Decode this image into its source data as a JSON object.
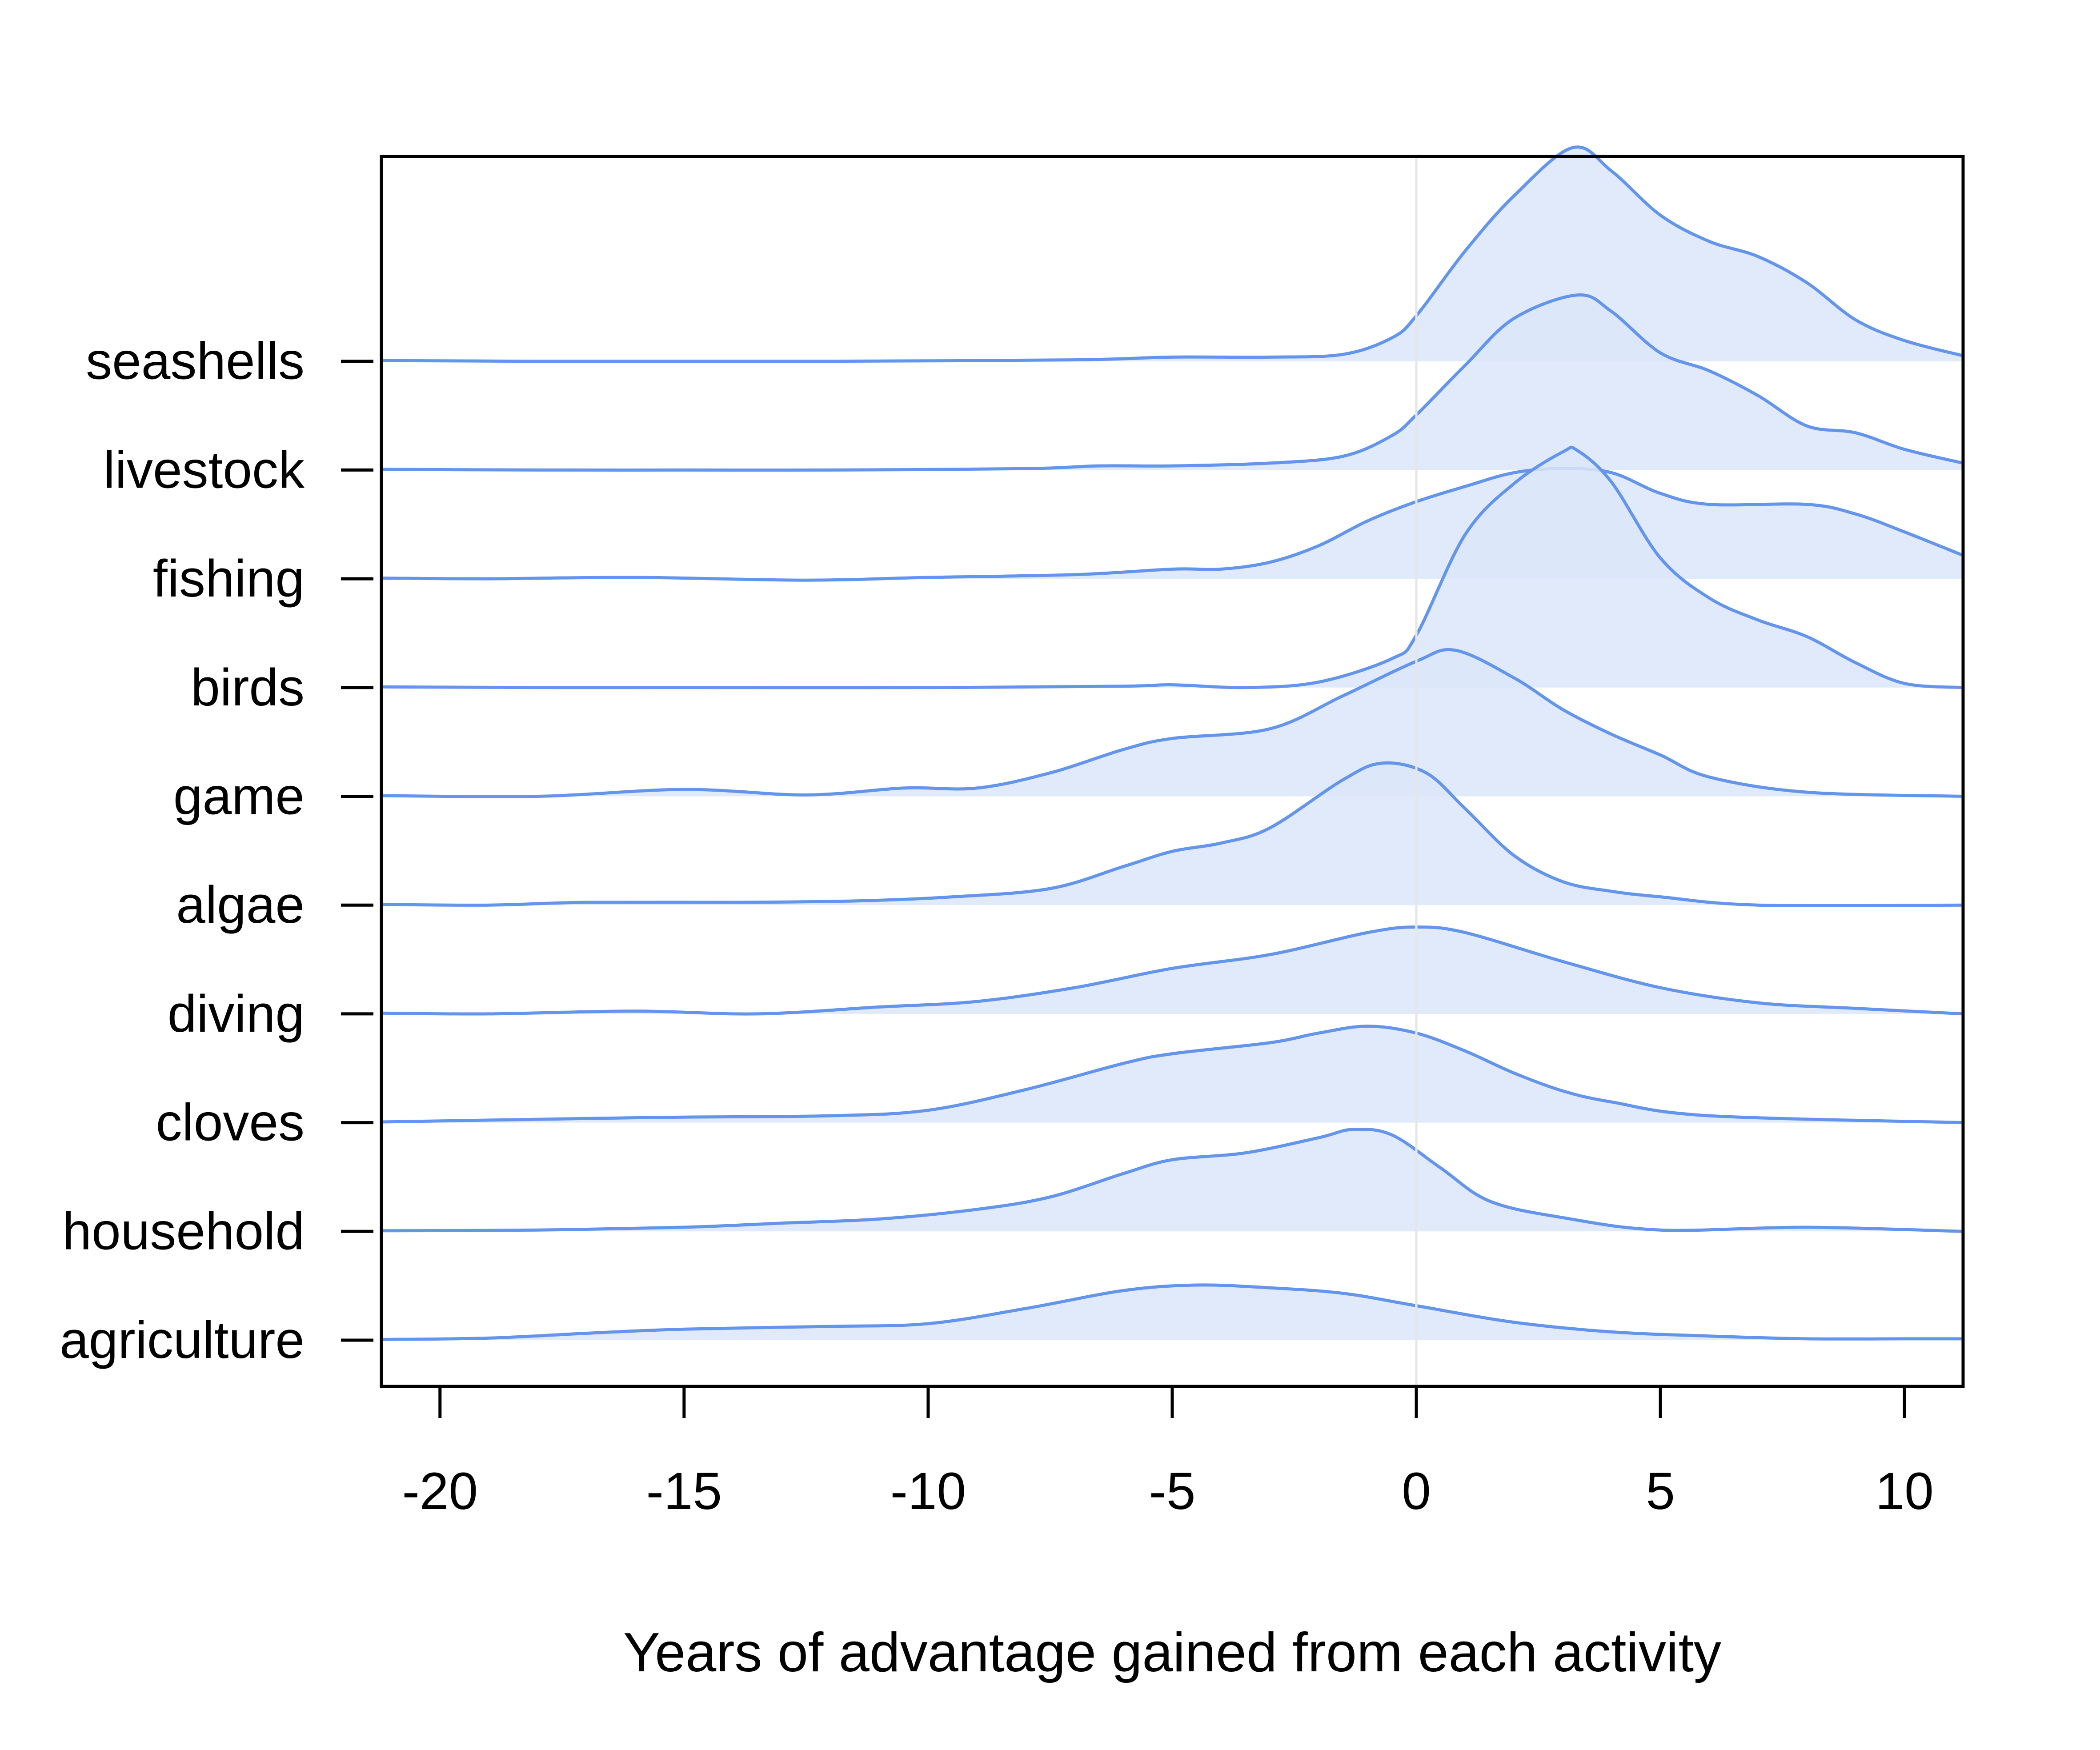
{
  "chart_data": {
    "type": "ridgeline",
    "xlabel": "Years of advantage gained from each activity",
    "ylabel": "",
    "title": "",
    "xlim": [
      -21.2,
      11.2
    ],
    "x_ticks": [
      -20,
      -15,
      -10,
      -5,
      0,
      5,
      10
    ],
    "x_tick_labels": [
      "-20",
      "-15",
      "-10",
      "-5",
      "0",
      "5",
      "10"
    ],
    "reference_line_x": 0,
    "grid": false,
    "legend": "none",
    "colors": {
      "line": "#6495ED",
      "fill": "#DCE6F9",
      "refline": "#E6E6E6"
    },
    "categories": [
      "agriculture",
      "household",
      "cloves",
      "diving",
      "algae",
      "game",
      "birds",
      "fishing",
      "livestock",
      "seashells"
    ],
    "series": [
      {
        "category": "agriculture",
        "x": [
          -21.2,
          -19,
          -17,
          -15,
          -12,
          -10,
          -8,
          -6,
          -4.5,
          -3,
          -1.5,
          0,
          2,
          4,
          6,
          8,
          10,
          11.2
        ],
        "density": [
          0.005,
          0.015,
          0.05,
          0.08,
          0.1,
          0.12,
          0.23,
          0.36,
          0.4,
          0.38,
          0.34,
          0.25,
          0.13,
          0.06,
          0.03,
          0.01,
          0.01,
          0.01
        ]
      },
      {
        "category": "household",
        "x": [
          -21.2,
          -18,
          -15,
          -13,
          -11,
          -9,
          -7.5,
          -6,
          -5,
          -3.5,
          -2,
          -1.3,
          -0.5,
          0.5,
          1.5,
          3,
          5,
          8,
          11.2
        ],
        "density": [
          0.005,
          0.01,
          0.03,
          0.06,
          0.09,
          0.16,
          0.25,
          0.42,
          0.52,
          0.57,
          0.68,
          0.74,
          0.7,
          0.46,
          0.22,
          0.1,
          0.01,
          0.03,
          0.0
        ]
      },
      {
        "category": "cloves",
        "x": [
          -21.2,
          -17,
          -15,
          -12,
          -10,
          -8,
          -6,
          -5,
          -3,
          -2,
          -1,
          0,
          1,
          2,
          3,
          4,
          6,
          11.2
        ],
        "density": [
          0.005,
          0.03,
          0.04,
          0.05,
          0.09,
          0.24,
          0.43,
          0.5,
          0.58,
          0.65,
          0.7,
          0.65,
          0.52,
          0.36,
          0.23,
          0.15,
          0.05,
          0.0
        ]
      },
      {
        "category": "diving",
        "x": [
          -21.2,
          -19,
          -16,
          -13.5,
          -11,
          -9,
          -7,
          -5,
          -3,
          -1,
          0,
          1,
          3,
          5,
          7,
          9,
          11.2
        ],
        "density": [
          0.005,
          0.0,
          0.02,
          0.0,
          0.05,
          0.09,
          0.19,
          0.33,
          0.43,
          0.59,
          0.63,
          0.59,
          0.38,
          0.19,
          0.08,
          0.04,
          0.0
        ]
      },
      {
        "category": "algae",
        "x": [
          -21.2,
          -19,
          -17,
          -14,
          -11.5,
          -9.5,
          -7.5,
          -6,
          -5,
          -4,
          -3,
          -1.5,
          -0.7,
          0.2,
          1,
          2,
          3,
          4,
          5,
          7,
          11.2
        ],
        "density": [
          0.005,
          0.0,
          0.02,
          0.02,
          0.03,
          0.06,
          0.12,
          0.28,
          0.39,
          0.45,
          0.56,
          0.91,
          1.03,
          0.96,
          0.7,
          0.36,
          0.17,
          0.1,
          0.06,
          0.0,
          0.0
        ]
      },
      {
        "category": "game",
        "x": [
          -21.2,
          -18,
          -15,
          -12.5,
          -10.5,
          -9,
          -7.5,
          -6,
          -5,
          -3,
          -1.5,
          0,
          0.8,
          2,
          3,
          4,
          5,
          6,
          8,
          11.2
        ],
        "density": [
          0.005,
          0.0,
          0.05,
          0.01,
          0.06,
          0.06,
          0.17,
          0.34,
          0.42,
          0.49,
          0.73,
          0.98,
          1.06,
          0.86,
          0.63,
          0.45,
          0.3,
          0.14,
          0.03,
          0.0
        ]
      },
      {
        "category": "birds",
        "x": [
          -21.2,
          -18,
          -15,
          -10,
          -6,
          -5,
          -3.5,
          -2,
          -0.5,
          0,
          1,
          2,
          3,
          3.3,
          4,
          5,
          6,
          7,
          8,
          9,
          10,
          11.2
        ],
        "density": [
          0.005,
          0.0,
          0.0,
          0.0,
          0.01,
          0.02,
          0.0,
          0.04,
          0.21,
          0.38,
          1.11,
          1.48,
          1.71,
          1.72,
          1.49,
          0.94,
          0.65,
          0.49,
          0.37,
          0.18,
          0.03,
          0.0
        ]
      },
      {
        "category": "fishing",
        "x": [
          -21.2,
          -19,
          -16,
          -12.5,
          -10,
          -7,
          -5,
          -4,
          -3,
          -2,
          -1,
          0,
          1,
          2,
          3,
          4,
          5,
          6,
          8,
          9,
          10,
          11.2
        ],
        "density": [
          0.005,
          0.0,
          0.01,
          -0.01,
          0.01,
          0.03,
          0.07,
          0.07,
          0.12,
          0.24,
          0.42,
          0.56,
          0.67,
          0.77,
          0.8,
          0.77,
          0.62,
          0.54,
          0.54,
          0.47,
          0.34,
          0.17
        ]
      },
      {
        "category": "livestock",
        "x": [
          -21.2,
          -18,
          -15,
          -12,
          -8,
          -6.5,
          -5,
          -3,
          -1.5,
          -0.5,
          0,
          1,
          2,
          3.3,
          4,
          5,
          6,
          7,
          8,
          9,
          10,
          11.2
        ],
        "density": [
          0.005,
          0.0,
          0.0,
          0.0,
          0.01,
          0.03,
          0.03,
          0.05,
          0.1,
          0.25,
          0.4,
          0.76,
          1.1,
          1.27,
          1.15,
          0.85,
          0.72,
          0.54,
          0.32,
          0.27,
          0.15,
          0.05
        ]
      },
      {
        "category": "seashells",
        "x": [
          -21.2,
          -18,
          -15,
          -12,
          -7,
          -5,
          -3,
          -1.5,
          -0.5,
          0,
          1,
          2,
          3.2,
          4,
          5,
          6,
          7,
          8,
          9,
          10,
          11.2
        ],
        "density": [
          0.005,
          0.0,
          0.0,
          0.0,
          0.01,
          0.03,
          0.03,
          0.05,
          0.17,
          0.33,
          0.8,
          1.2,
          1.55,
          1.38,
          1.06,
          0.87,
          0.76,
          0.57,
          0.3,
          0.15,
          0.04
        ]
      }
    ]
  }
}
